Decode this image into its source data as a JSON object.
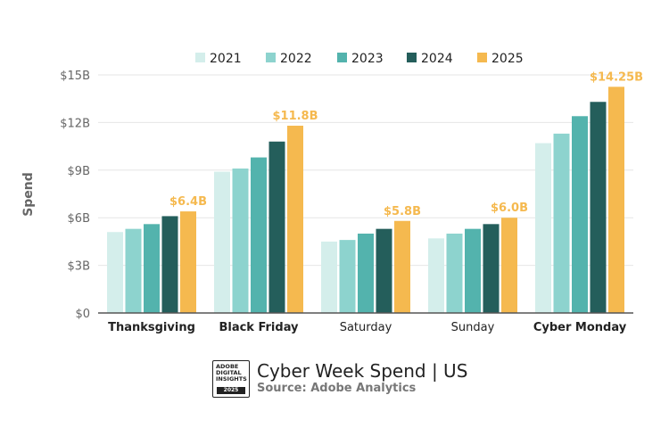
{
  "chart_data": {
    "type": "bar",
    "ylabel": "Spend",
    "ylim": [
      0,
      15
    ],
    "yticks": [
      0,
      3,
      6,
      9,
      12,
      15
    ],
    "ytick_labels": [
      "$0",
      "$3B",
      "$6B",
      "$9B",
      "$12B",
      "$15B"
    ],
    "grid": true,
    "legend": "top-center",
    "categories": [
      "Thanksgiving",
      "Black Friday",
      "Saturday",
      "Sunday",
      "Cyber Monday"
    ],
    "bold_categories": [
      "Thanksgiving",
      "Black Friday",
      "Cyber Monday"
    ],
    "series": [
      {
        "name": "2021",
        "color": "#d4eeeb",
        "values": [
          5.1,
          8.9,
          4.5,
          4.7,
          10.7
        ]
      },
      {
        "name": "2022",
        "color": "#8dd3ce",
        "values": [
          5.3,
          9.1,
          4.6,
          5.0,
          11.3
        ]
      },
      {
        "name": "2023",
        "color": "#53b3ad",
        "values": [
          5.6,
          9.8,
          5.0,
          5.3,
          12.4
        ]
      },
      {
        "name": "2024",
        "color": "#245e5b",
        "values": [
          6.1,
          10.8,
          5.3,
          5.6,
          13.3
        ]
      },
      {
        "name": "2025",
        "color": "#f5b94f",
        "values": [
          6.4,
          11.8,
          5.8,
          6.0,
          14.25
        ]
      }
    ],
    "data_labels": [
      "$6.4B",
      "$11.8B",
      "$5.8B",
      "$6.0B",
      "$14.25B"
    ],
    "data_label_color": "#f5b94f"
  },
  "footer": {
    "logo_lines": [
      "ADOBE",
      "DIGITAL",
      "INSIGHTS"
    ],
    "logo_year": "2025",
    "title": "Cyber Week Spend | US",
    "source": "Source: Adobe Analytics"
  }
}
